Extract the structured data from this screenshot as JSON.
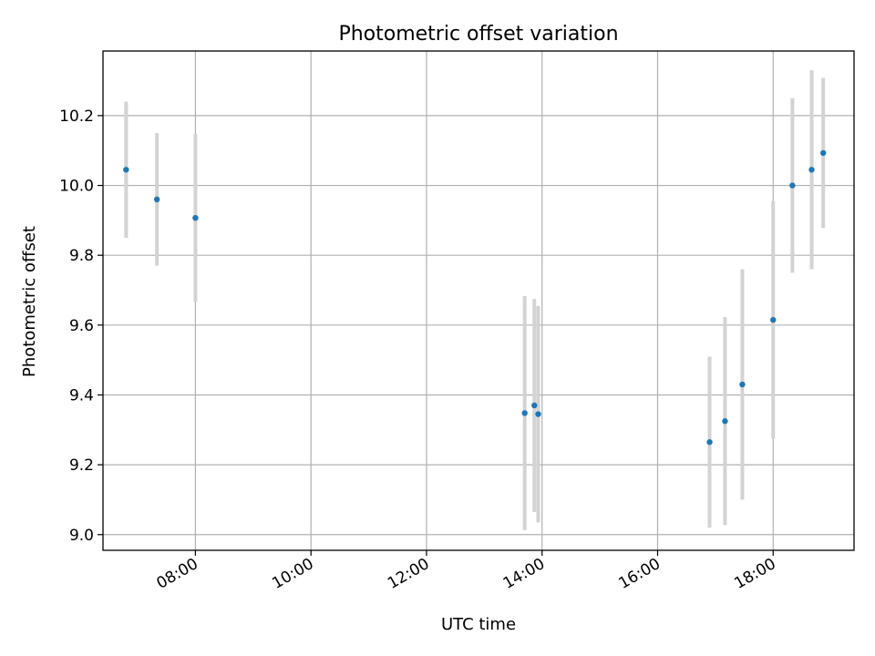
{
  "chart_data": {
    "type": "scatter",
    "title": "Photometric offset variation",
    "xlabel": "UTC time",
    "ylabel": "Photometric offset",
    "x_axis_type": "time",
    "x_unit": "hours UTC",
    "xlim": [
      "06:24",
      "19:24"
    ],
    "ylim": [
      8.955,
      10.385
    ],
    "x_ticks": [
      "08:00",
      "10:00",
      "12:00",
      "14:00",
      "16:00",
      "18:00"
    ],
    "y_ticks": [
      "9.0",
      "9.2",
      "9.4",
      "9.6",
      "9.8",
      "10.0",
      "10.2"
    ],
    "grid": true,
    "marker_color": "#1f77b4",
    "errorbar_color": "#d3d3d3",
    "points": [
      {
        "time": "06:48",
        "y": 10.045,
        "err": 0.195
      },
      {
        "time": "07:20",
        "y": 9.96,
        "err": 0.19
      },
      {
        "time": "08:00",
        "y": 9.907,
        "err": 0.24
      },
      {
        "time": "13:42",
        "y": 9.348,
        "err": 0.335
      },
      {
        "time": "13:52",
        "y": 9.37,
        "err": 0.305
      },
      {
        "time": "13:56",
        "y": 9.345,
        "err": 0.31
      },
      {
        "time": "16:54",
        "y": 9.265,
        "err": 0.245
      },
      {
        "time": "17:10",
        "y": 9.325,
        "err": 0.298
      },
      {
        "time": "17:28",
        "y": 9.43,
        "err": 0.33
      },
      {
        "time": "18:00",
        "y": 9.615,
        "err": 0.34
      },
      {
        "time": "18:20",
        "y": 10.0,
        "err": 0.25
      },
      {
        "time": "18:40",
        "y": 10.045,
        "err": 0.285
      },
      {
        "time": "18:52",
        "y": 10.093,
        "err": 0.215
      }
    ]
  }
}
